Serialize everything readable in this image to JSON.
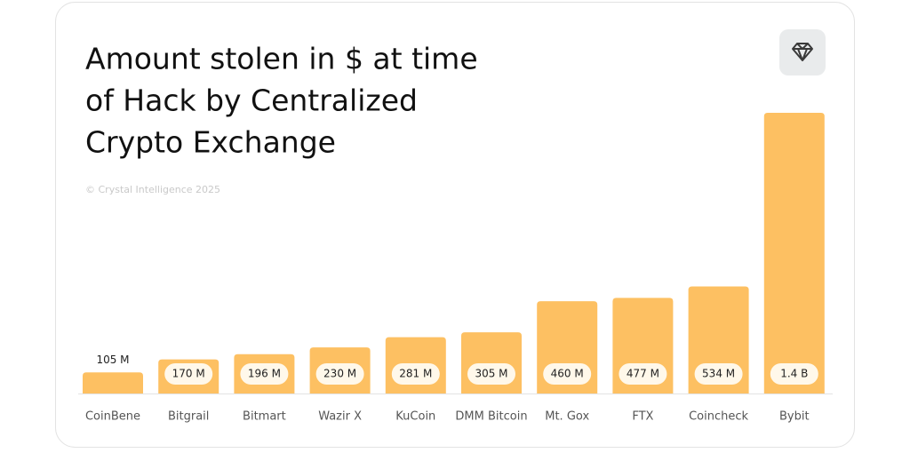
{
  "chart_data": {
    "type": "bar",
    "title": [
      "Amount stolen in $ at time",
      "of Hack by Centralized",
      "Crypto Exchange"
    ],
    "subtitle": "© Crystal Intelligence 2025",
    "categories": [
      "CoinBene",
      "Bitgrail",
      "Bitmart",
      "Wazir X",
      "KuCoin",
      "DMM Bitcoin",
      "Mt. Gox",
      "FTX",
      "Coincheck",
      "Bybit"
    ],
    "values": [
      105,
      170,
      196,
      230,
      281,
      305,
      460,
      477,
      534,
      1400
    ],
    "value_labels": [
      "105 M",
      "170 M",
      "196 M",
      "230 M",
      "281 M",
      "305 M",
      "460 M",
      "477 M",
      "534 M",
      "1.4 B"
    ],
    "color": "#fdc062"
  }
}
